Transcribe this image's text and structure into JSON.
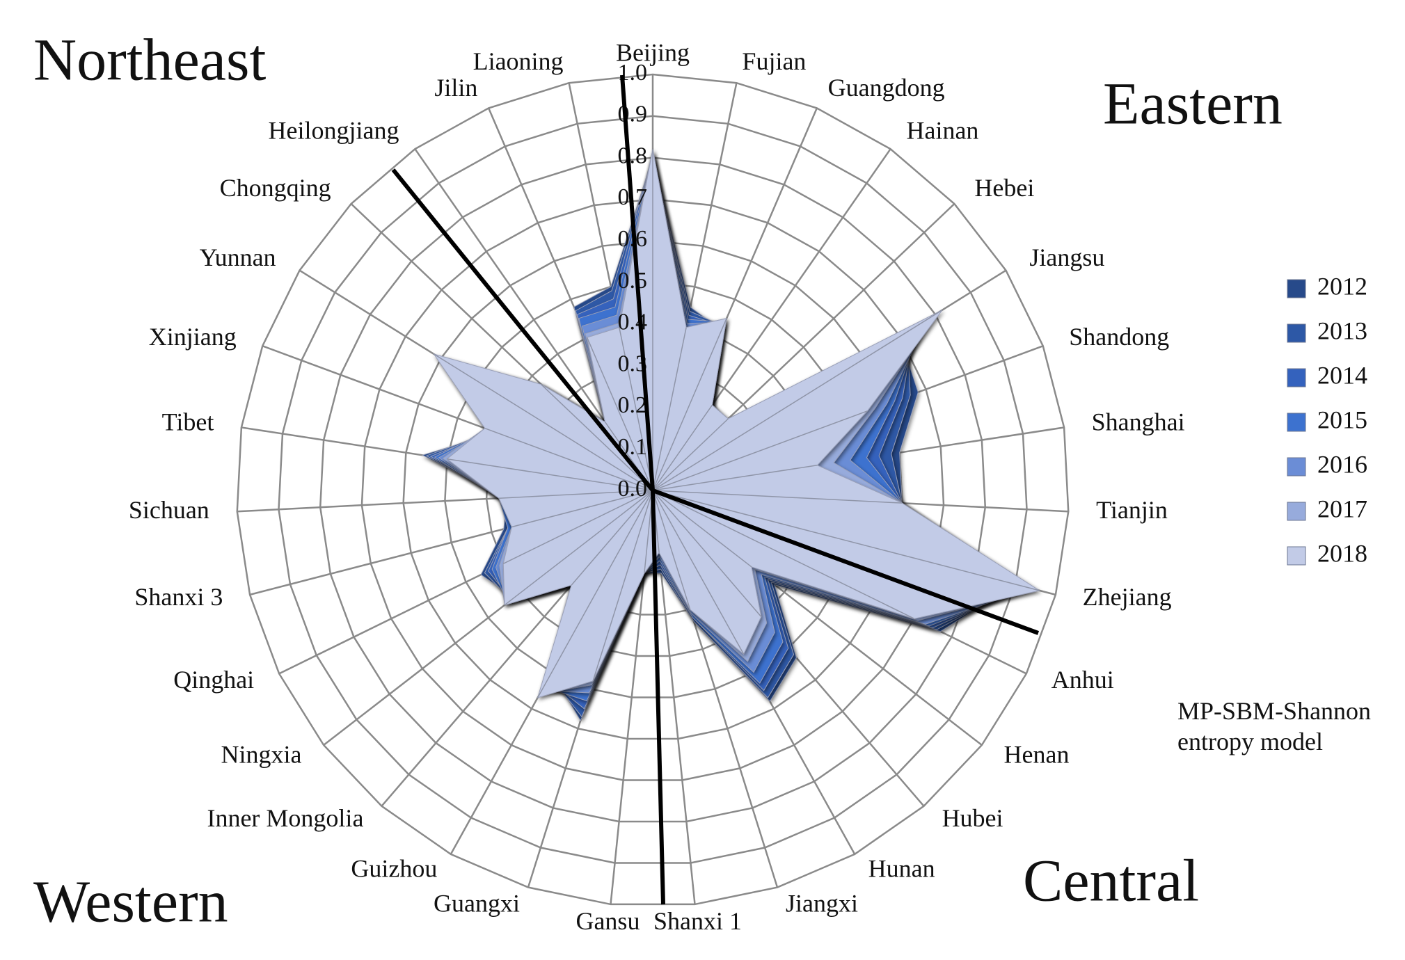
{
  "chart_data": {
    "type": "radar",
    "categories": [
      "Beijing",
      "Fujian",
      "Guangdong",
      "Hainan",
      "Hebei",
      "Jiangsu",
      "Shandong",
      "Shanghai",
      "Tianjin",
      "Zhejiang",
      "Anhui",
      "Henan",
      "Hubei",
      "Hunan",
      "Jiangxi",
      "Shanxi 1",
      "Gansu",
      "Guangxi",
      "Guizhou",
      "Inner Mongolia",
      "Ningxia",
      "Qinghai",
      "Shanxi 3",
      "Sichuan",
      "Tibet",
      "Xinjiang",
      "Yunnan",
      "Chongqing",
      "Heilongjiang",
      "Jilin",
      "Liaoning"
    ],
    "series": [
      {
        "name": "2012",
        "color": "#274a8a",
        "values": [
          0.8,
          0.45,
          0.42,
          0.25,
          0.22,
          0.7,
          0.68,
          0.6,
          0.6,
          0.9,
          0.77,
          0.37,
          0.53,
          0.58,
          0.33,
          0.2,
          0.2,
          0.58,
          0.5,
          0.3,
          0.42,
          0.46,
          0.37,
          0.35,
          0.56,
          0.4,
          0.55,
          0.36,
          0.2,
          0.48,
          0.5
        ]
      },
      {
        "name": "2013",
        "color": "#2d58a6",
        "values": [
          0.8,
          0.44,
          0.43,
          0.25,
          0.23,
          0.72,
          0.66,
          0.58,
          0.6,
          0.91,
          0.76,
          0.36,
          0.52,
          0.57,
          0.33,
          0.19,
          0.2,
          0.57,
          0.51,
          0.3,
          0.43,
          0.45,
          0.36,
          0.36,
          0.55,
          0.41,
          0.56,
          0.36,
          0.2,
          0.47,
          0.49
        ]
      },
      {
        "name": "2014",
        "color": "#3462bd",
        "values": [
          0.81,
          0.43,
          0.43,
          0.25,
          0.23,
          0.74,
          0.64,
          0.55,
          0.6,
          0.92,
          0.75,
          0.35,
          0.5,
          0.55,
          0.32,
          0.18,
          0.2,
          0.55,
          0.52,
          0.3,
          0.43,
          0.44,
          0.36,
          0.36,
          0.54,
          0.41,
          0.57,
          0.36,
          0.2,
          0.46,
          0.47
        ]
      },
      {
        "name": "2015",
        "color": "#3d72cf",
        "values": [
          0.81,
          0.42,
          0.44,
          0.25,
          0.24,
          0.76,
          0.62,
          0.52,
          0.6,
          0.93,
          0.74,
          0.34,
          0.48,
          0.53,
          0.32,
          0.17,
          0.2,
          0.53,
          0.54,
          0.3,
          0.44,
          0.43,
          0.36,
          0.37,
          0.53,
          0.42,
          0.58,
          0.37,
          0.2,
          0.45,
          0.45
        ]
      },
      {
        "name": "2016",
        "color": "#6b8dd6",
        "values": [
          0.81,
          0.41,
          0.44,
          0.25,
          0.24,
          0.78,
          0.6,
          0.48,
          0.6,
          0.94,
          0.73,
          0.33,
          0.45,
          0.5,
          0.31,
          0.16,
          0.2,
          0.51,
          0.55,
          0.3,
          0.44,
          0.42,
          0.35,
          0.37,
          0.52,
          0.42,
          0.6,
          0.37,
          0.2,
          0.43,
          0.43
        ]
      },
      {
        "name": "2017",
        "color": "#97abdc",
        "values": [
          0.82,
          0.4,
          0.45,
          0.25,
          0.25,
          0.8,
          0.57,
          0.44,
          0.6,
          0.95,
          0.71,
          0.31,
          0.42,
          0.47,
          0.3,
          0.15,
          0.2,
          0.49,
          0.56,
          0.3,
          0.45,
          0.41,
          0.35,
          0.37,
          0.51,
          0.43,
          0.61,
          0.37,
          0.2,
          0.41,
          0.41
        ]
      },
      {
        "name": "2018",
        "color": "#c2cbe7",
        "values": [
          0.82,
          0.4,
          0.45,
          0.25,
          0.25,
          0.82,
          0.55,
          0.4,
          0.6,
          0.96,
          0.7,
          0.3,
          0.4,
          0.45,
          0.3,
          0.15,
          0.2,
          0.48,
          0.57,
          0.3,
          0.45,
          0.4,
          0.35,
          0.37,
          0.5,
          0.43,
          0.62,
          0.37,
          0.2,
          0.4,
          0.4
        ]
      }
    ],
    "ylim": [
      0,
      1
    ],
    "yticks": [
      {
        "value": 0,
        "label": "0.0"
      },
      0.1,
      0.2,
      0.3,
      0.4,
      0.5,
      0.6,
      0.7,
      0.8,
      0.9,
      {
        "value": 1,
        "label": "1.0"
      }
    ],
    "grid": true,
    "legend": "right",
    "annotations": [
      "Northeast",
      "Eastern",
      "Central",
      "Western",
      "MP-SBM-Shannon entropy model"
    ]
  }
}
